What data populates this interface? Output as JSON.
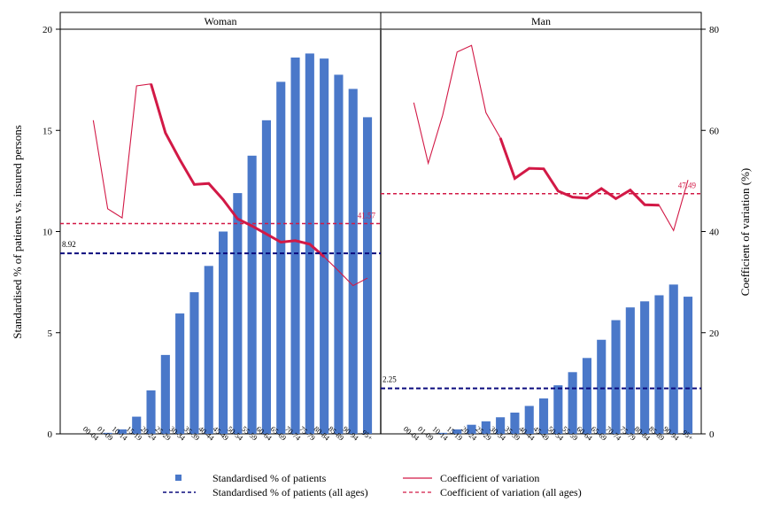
{
  "chart_data": {
    "type": "bar",
    "categories": [
      "00-04",
      "01-09",
      "10-14",
      "15-19",
      "20-24",
      "25-29",
      "30-34",
      "35-39",
      "40-44",
      "45-49",
      "50-54",
      "55-59",
      "60-64",
      "65-69",
      "70-74",
      "75-79",
      "80-84",
      "85-89",
      "90-94",
      "95+"
    ],
    "left_axis": {
      "label": "Standardised % of patients vs. insured persons",
      "ticks": [
        "0",
        "5",
        "10",
        "15",
        "20"
      ],
      "ylim": [
        0,
        20
      ]
    },
    "right_axis": {
      "label": "Coefficient of variation (%)",
      "ticks": [
        "0",
        "20",
        "40",
        "60",
        "80"
      ],
      "ylim": [
        0,
        80
      ]
    },
    "colors": {
      "bars": "#4a78c9",
      "cv": "#d21946",
      "overall_patients": "#0a0a7d"
    },
    "panels": [
      {
        "title": "Woman",
        "patients": [
          0,
          0.05,
          0.22,
          0.85,
          2.15,
          3.9,
          5.95,
          7.0,
          8.3,
          10.0,
          11.9,
          13.75,
          15.5,
          17.4,
          18.6,
          18.8,
          18.55,
          17.75,
          17.05,
          15.65
        ],
        "cv": [
          62,
          44.5,
          42.7,
          68.8,
          69.2,
          59.5,
          54.2,
          49.3,
          49.5,
          46.3,
          42.5,
          41.1,
          39.5,
          37.9,
          38.2,
          37.5,
          35.0,
          32.2,
          29.3,
          30.8
        ],
        "cv_thick_range": [
          4,
          16
        ],
        "overall_patients": 8.92,
        "overall_cv": 41.57,
        "overall_patients_label": "8.92",
        "overall_cv_label": "41.57"
      },
      {
        "title": "Man",
        "patients": [
          0,
          0,
          0.05,
          0.22,
          0.45,
          0.62,
          0.82,
          1.05,
          1.38,
          1.75,
          2.4,
          3.05,
          3.75,
          4.65,
          5.62,
          6.25,
          6.55,
          6.85,
          7.38,
          6.78
        ],
        "cv": [
          65.5,
          53.5,
          63,
          75.5,
          76.8,
          63.5,
          58.5,
          50.5,
          52.5,
          52.4,
          48,
          46.8,
          46.6,
          48.5,
          46.5,
          48.2,
          45.3,
          45.2,
          40.2,
          50.2
        ],
        "cv_thick_range": [
          6,
          17
        ],
        "overall_patients": 2.25,
        "overall_cv": 47.49,
        "overall_patients_label": "2.25",
        "overall_cv_label": "47.49"
      }
    ],
    "legend": {
      "placement": "bottom",
      "items": [
        {
          "label": "Standardised % of patients",
          "kind": "square"
        },
        {
          "label": "Coefficient of variation",
          "kind": "thin-line"
        },
        {
          "label": "Standardised % of patients (all ages)",
          "kind": "navy-dash"
        },
        {
          "label": "Coefficient of variation (all ages)",
          "kind": "red-dash"
        }
      ]
    }
  }
}
